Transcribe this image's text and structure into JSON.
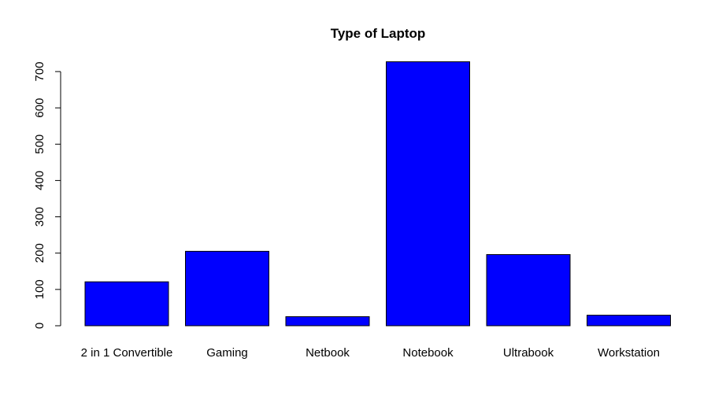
{
  "chart_data": {
    "type": "bar",
    "title": "Type of Laptop",
    "xlabel": "",
    "ylabel": "",
    "categories": [
      "2 in 1 Convertible",
      "Gaming",
      "Netbook",
      "Notebook",
      "Ultrabook",
      "Workstation"
    ],
    "values": [
      121,
      205,
      25,
      727,
      196,
      29
    ],
    "yticks": [
      0,
      100,
      200,
      300,
      400,
      500,
      600,
      700
    ],
    "ylim": [
      0,
      727
    ],
    "bar_color": "#0000ff",
    "grid": false,
    "legend": "none"
  }
}
